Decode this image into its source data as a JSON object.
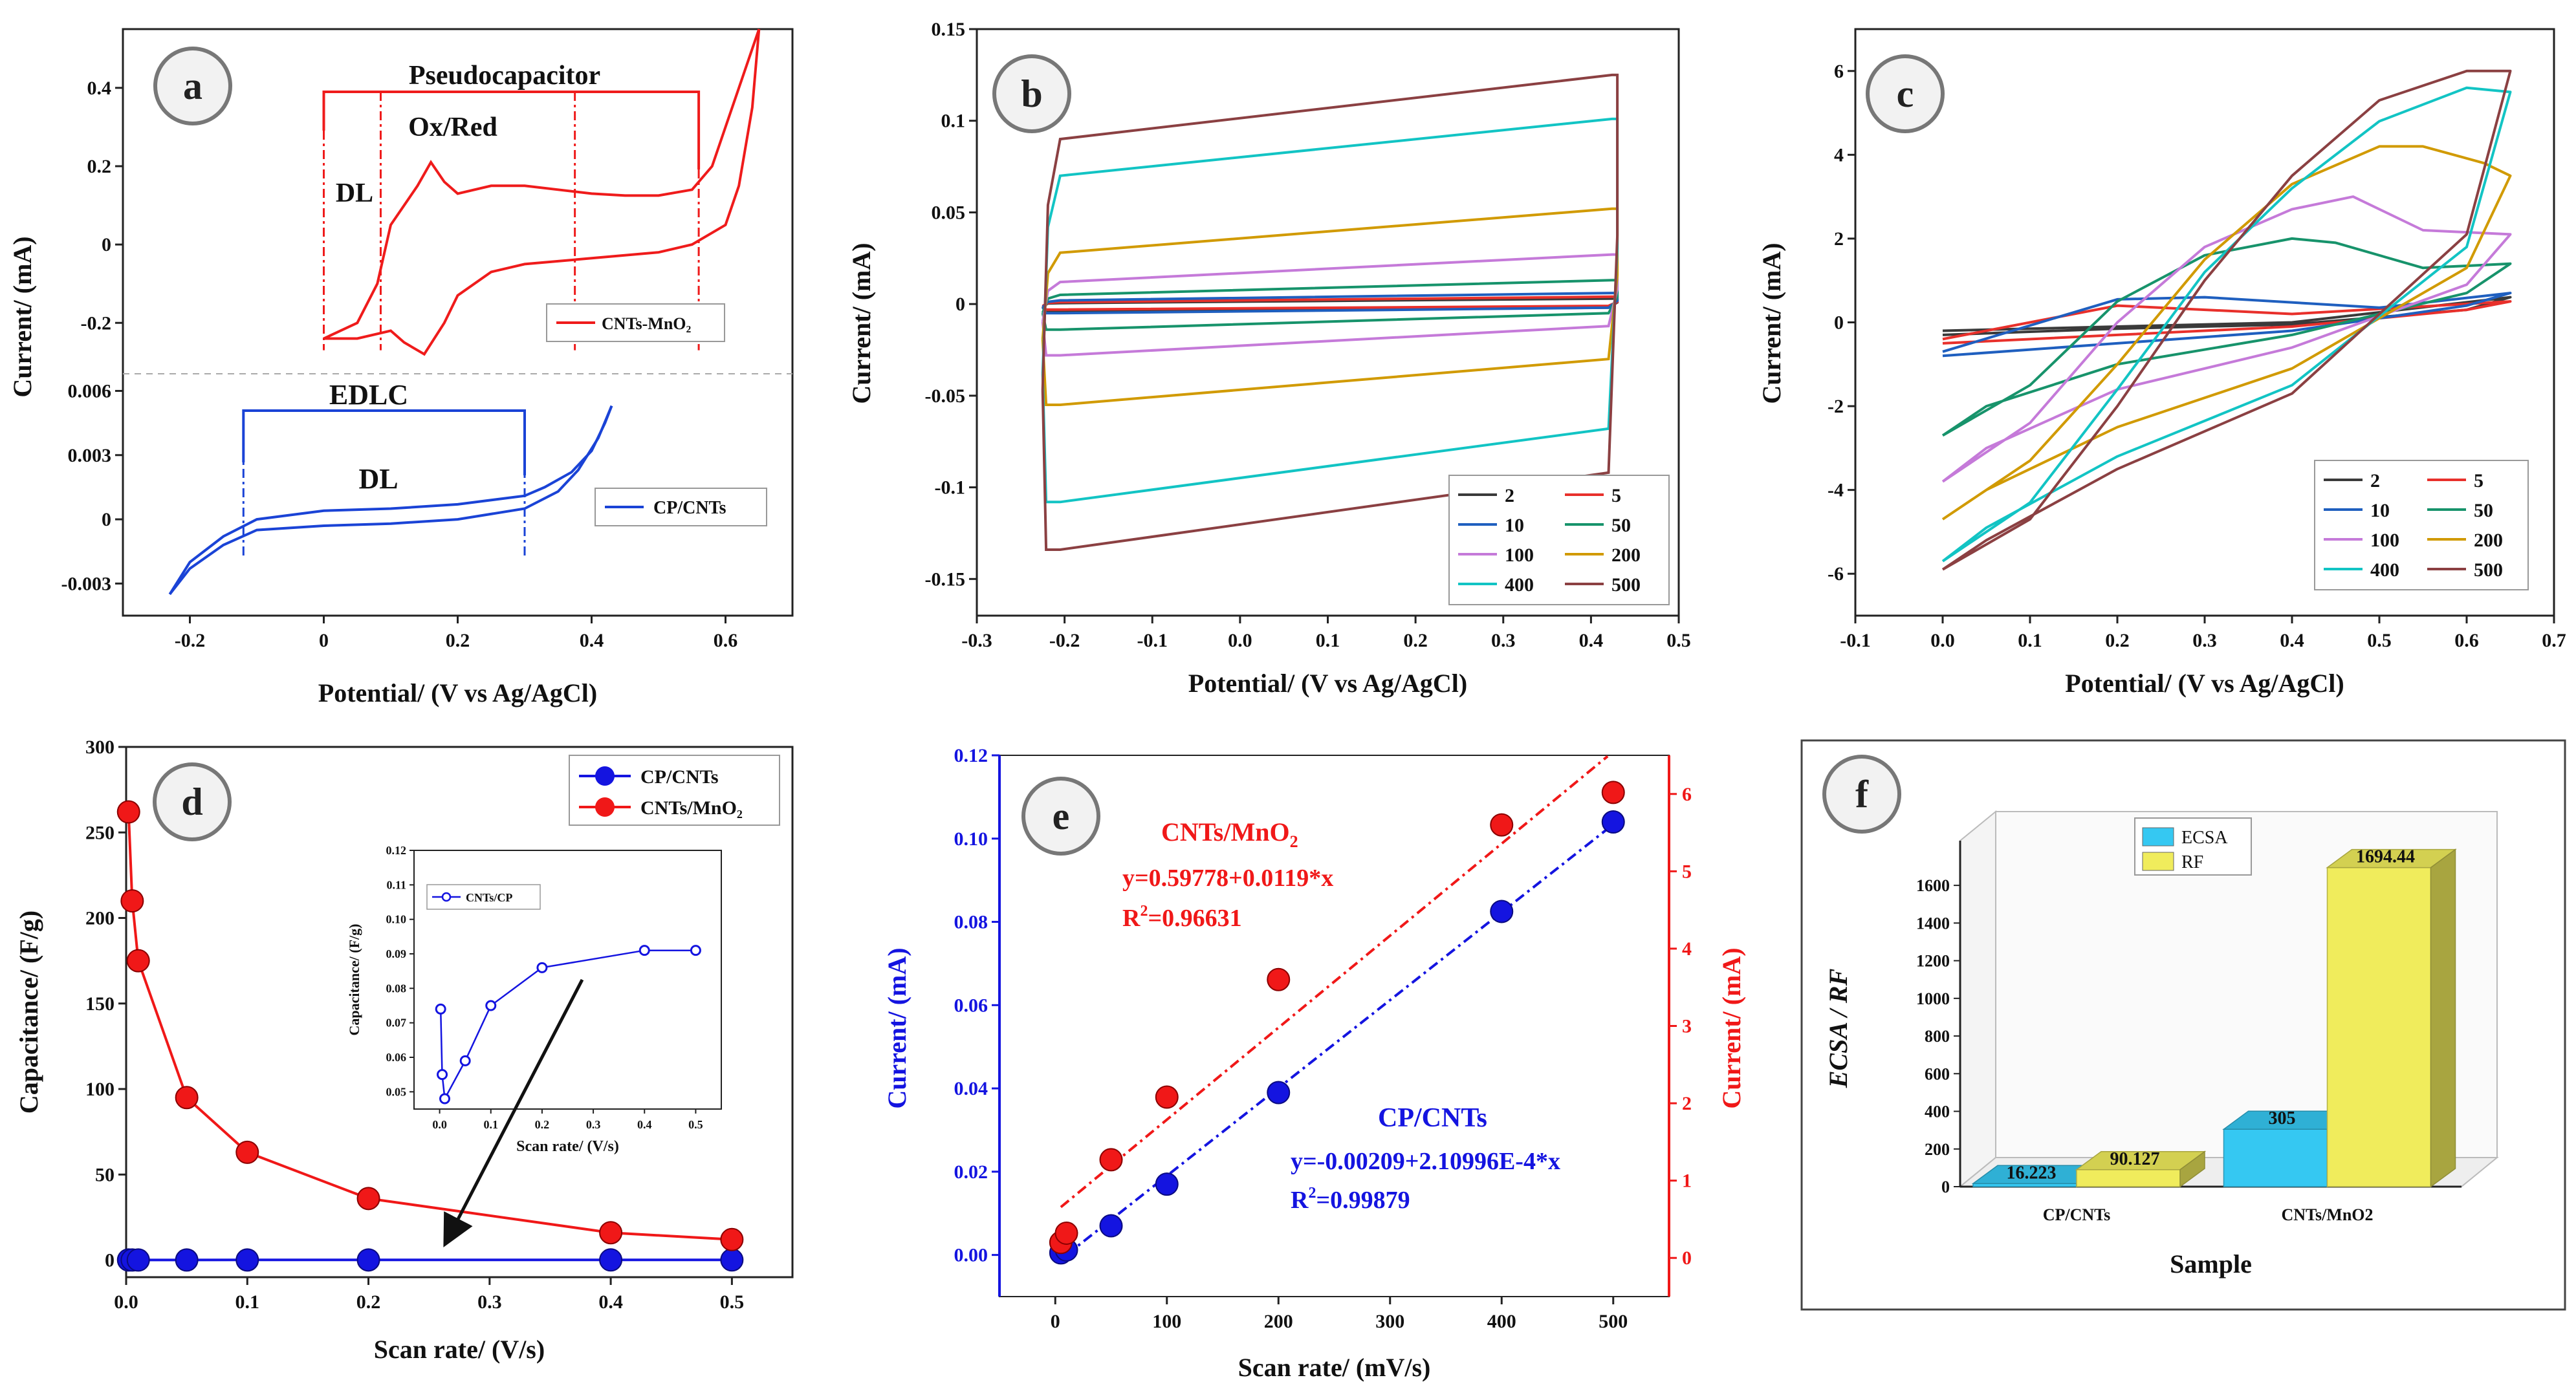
{
  "chart_data": [
    {
      "id": "a",
      "type": "line",
      "badge": "a",
      "xlabel": "Potential/ (V vs Ag/AgCl)",
      "ylabel": "Current/ (mA)",
      "xticks": [
        "-0.2",
        "0",
        "0.2",
        "0.4",
        "0.6"
      ],
      "xlim": [
        -0.3,
        0.7
      ],
      "upper": {
        "ylim": [
          -0.33,
          0.55
        ],
        "yticks": [
          "-0.2",
          "0",
          "0.2",
          "0.4"
        ],
        "series_name": "CNTs-MnO2",
        "legend": "CNTs-MnO₂",
        "annotations": {
          "pseudo": "Pseudocapacitor",
          "oxred": "Ox/Red",
          "dl": "DL"
        },
        "forward": [
          [
            0,
            -0.24
          ],
          [
            0.05,
            -0.2
          ],
          [
            0.08,
            -0.1
          ],
          [
            0.1,
            0.05
          ],
          [
            0.14,
            0.15
          ],
          [
            0.16,
            0.21
          ],
          [
            0.18,
            0.16
          ],
          [
            0.2,
            0.13
          ],
          [
            0.25,
            0.15
          ],
          [
            0.3,
            0.15
          ],
          [
            0.35,
            0.14
          ],
          [
            0.4,
            0.13
          ],
          [
            0.45,
            0.125
          ],
          [
            0.5,
            0.125
          ],
          [
            0.55,
            0.14
          ],
          [
            0.58,
            0.2
          ],
          [
            0.6,
            0.3
          ],
          [
            0.62,
            0.4
          ],
          [
            0.64,
            0.5
          ],
          [
            0.65,
            0.55
          ]
        ],
        "reverse": [
          [
            0.65,
            0.55
          ],
          [
            0.64,
            0.35
          ],
          [
            0.62,
            0.15
          ],
          [
            0.6,
            0.05
          ],
          [
            0.55,
            0.0
          ],
          [
            0.5,
            -0.02
          ],
          [
            0.4,
            -0.035
          ],
          [
            0.3,
            -0.05
          ],
          [
            0.25,
            -0.07
          ],
          [
            0.2,
            -0.13
          ],
          [
            0.18,
            -0.2
          ],
          [
            0.15,
            -0.28
          ],
          [
            0.12,
            -0.25
          ],
          [
            0.1,
            -0.22
          ],
          [
            0.05,
            -0.24
          ],
          [
            0,
            -0.24
          ]
        ]
      },
      "lower": {
        "ylim": [
          -0.0045,
          0.0068
        ],
        "yticks": [
          "-0.003",
          "0",
          "0.003",
          "0.006"
        ],
        "series_name": "CP/CNTs",
        "legend": "CP/CNTs",
        "annotations": {
          "edlc": "EDLC",
          "dl": "DL"
        },
        "forward": [
          [
            -0.23,
            -0.0035
          ],
          [
            -0.2,
            -0.0023
          ],
          [
            -0.15,
            -0.0012
          ],
          [
            -0.1,
            -0.0005
          ],
          [
            0,
            -0.0003
          ],
          [
            0.1,
            -0.0002
          ],
          [
            0.2,
            0.0
          ],
          [
            0.3,
            0.0005
          ],
          [
            0.35,
            0.0013
          ],
          [
            0.38,
            0.0023
          ],
          [
            0.41,
            0.0038
          ],
          [
            0.43,
            0.0053
          ]
        ],
        "reverse": [
          [
            0.43,
            0.0053
          ],
          [
            0.42,
            0.0045
          ],
          [
            0.4,
            0.0032
          ],
          [
            0.37,
            0.0022
          ],
          [
            0.33,
            0.0015
          ],
          [
            0.3,
            0.0011
          ],
          [
            0.2,
            0.0007
          ],
          [
            0.1,
            0.0005
          ],
          [
            0,
            0.0004
          ],
          [
            -0.1,
            0.0
          ],
          [
            -0.15,
            -0.0008
          ],
          [
            -0.2,
            -0.002
          ],
          [
            -0.23,
            -0.0035
          ]
        ]
      }
    },
    {
      "id": "b",
      "type": "line",
      "badge": "b",
      "title": "",
      "xlabel": "Potential/ (V vs Ag/AgCl)",
      "ylabel": "Current/ (mA)",
      "xlim": [
        -0.3,
        0.5
      ],
      "ylim": [
        -0.17,
        0.15
      ],
      "xticks": [
        "-0.3",
        "-0.2",
        "-0.1",
        "0.0",
        "0.1",
        "0.2",
        "0.3",
        "0.4",
        "0.5"
      ],
      "yticks": [
        "-0.15",
        "-0.1",
        "-0.05",
        "0",
        "0.05",
        "0.1",
        "0.15"
      ],
      "series": [
        {
          "name": "2",
          "color": "#3a3a3a",
          "top_a": 0.0005,
          "top_b": 0.003,
          "bot_a": -0.004,
          "bot_b": -0.002
        },
        {
          "name": "5",
          "color": "#e8302b",
          "top_a": 0.001,
          "top_b": 0.004,
          "bot_a": -0.003,
          "bot_b": -0.001
        },
        {
          "name": "10",
          "color": "#1f5fbf",
          "top_a": 0.002,
          "top_b": 0.006,
          "bot_a": -0.005,
          "bot_b": -0.002
        },
        {
          "name": "50",
          "color": "#17936b",
          "top_a": 0.005,
          "top_b": 0.013,
          "bot_a": -0.014,
          "bot_b": -0.005
        },
        {
          "name": "100",
          "color": "#c57ad9",
          "top_a": 0.012,
          "top_b": 0.027,
          "bot_a": -0.028,
          "bot_b": -0.012
        },
        {
          "name": "200",
          "color": "#d19a00",
          "top_a": 0.028,
          "top_b": 0.052,
          "bot_a": -0.055,
          "bot_b": -0.03
        },
        {
          "name": "400",
          "color": "#12c4c4",
          "top_a": 0.07,
          "top_b": 0.101,
          "bot_a": -0.108,
          "bot_b": -0.068
        },
        {
          "name": "500",
          "color": "#8b4042",
          "top_a": 0.09,
          "top_b": 0.125,
          "bot_a": -0.134,
          "bot_b": -0.092
        }
      ]
    },
    {
      "id": "c",
      "type": "line",
      "badge": "c",
      "xlabel": "Potential/ (V vs Ag/AgCl)",
      "ylabel": "Current/ (mA)",
      "xlim": [
        -0.1,
        0.7
      ],
      "ylim": [
        -7,
        7
      ],
      "xticks": [
        "-0.1",
        "0.0",
        "0.1",
        "0.2",
        "0.3",
        "0.4",
        "0.5",
        "0.6",
        "0.7"
      ],
      "yticks": [
        "-6",
        "-4",
        "-2",
        "0",
        "2",
        "4",
        "6"
      ],
      "series": [
        {
          "name": "2",
          "color": "#3a3a3a",
          "pts": [
            [
              0,
              -0.2
            ],
            [
              0.2,
              -0.1
            ],
            [
              0.4,
              0.0
            ],
            [
              0.65,
              0.6
            ],
            [
              0.6,
              0.3
            ],
            [
              0.4,
              -0.05
            ],
            [
              0.2,
              -0.15
            ],
            [
              0,
              -0.3
            ]
          ]
        },
        {
          "name": "5",
          "color": "#e8302b",
          "pts": [
            [
              0,
              -0.4
            ],
            [
              0.2,
              0.4
            ],
            [
              0.4,
              0.2
            ],
            [
              0.65,
              0.5
            ],
            [
              0.6,
              0.3
            ],
            [
              0.4,
              -0.1
            ],
            [
              0.2,
              -0.3
            ],
            [
              0,
              -0.5
            ]
          ]
        },
        {
          "name": "10",
          "color": "#1f5fbf",
          "pts": [
            [
              0,
              -0.7
            ],
            [
              0.2,
              0.55
            ],
            [
              0.3,
              0.6
            ],
            [
              0.5,
              0.35
            ],
            [
              0.65,
              0.7
            ],
            [
              0.6,
              0.4
            ],
            [
              0.4,
              -0.2
            ],
            [
              0.2,
              -0.5
            ],
            [
              0,
              -0.8
            ]
          ]
        },
        {
          "name": "50",
          "color": "#17936b",
          "pts": [
            [
              0,
              -2.7
            ],
            [
              0.1,
              -1.5
            ],
            [
              0.2,
              0.5
            ],
            [
              0.3,
              1.6
            ],
            [
              0.4,
              2.0
            ],
            [
              0.45,
              1.9
            ],
            [
              0.55,
              1.3
            ],
            [
              0.65,
              1.4
            ],
            [
              0.6,
              0.7
            ],
            [
              0.4,
              -0.3
            ],
            [
              0.2,
              -1.0
            ],
            [
              0.05,
              -2.0
            ],
            [
              0,
              -2.7
            ]
          ]
        },
        {
          "name": "100",
          "color": "#c57ad9",
          "pts": [
            [
              0,
              -3.8
            ],
            [
              0.1,
              -2.4
            ],
            [
              0.2,
              0.0
            ],
            [
              0.3,
              1.8
            ],
            [
              0.4,
              2.7
            ],
            [
              0.47,
              3.0
            ],
            [
              0.55,
              2.2
            ],
            [
              0.65,
              2.1
            ],
            [
              0.6,
              0.9
            ],
            [
              0.4,
              -0.6
            ],
            [
              0.2,
              -1.6
            ],
            [
              0.05,
              -3.0
            ],
            [
              0,
              -3.8
            ]
          ]
        },
        {
          "name": "200",
          "color": "#d19a00",
          "pts": [
            [
              0,
              -4.7
            ],
            [
              0.1,
              -3.3
            ],
            [
              0.2,
              -1.0
            ],
            [
              0.3,
              1.5
            ],
            [
              0.4,
              3.3
            ],
            [
              0.5,
              4.2
            ],
            [
              0.55,
              4.2
            ],
            [
              0.62,
              3.8
            ],
            [
              0.65,
              3.5
            ],
            [
              0.6,
              1.3
            ],
            [
              0.4,
              -1.1
            ],
            [
              0.2,
              -2.5
            ],
            [
              0.05,
              -4.0
            ],
            [
              0,
              -4.7
            ]
          ]
        },
        {
          "name": "400",
          "color": "#12c4c4",
          "pts": [
            [
              0,
              -5.7
            ],
            [
              0.1,
              -4.3
            ],
            [
              0.2,
              -1.6
            ],
            [
              0.3,
              1.2
            ],
            [
              0.4,
              3.2
            ],
            [
              0.5,
              4.8
            ],
            [
              0.6,
              5.6
            ],
            [
              0.65,
              5.5
            ],
            [
              0.6,
              1.8
            ],
            [
              0.4,
              -1.5
            ],
            [
              0.2,
              -3.2
            ],
            [
              0.05,
              -4.9
            ],
            [
              0,
              -5.7
            ]
          ]
        },
        {
          "name": "500",
          "color": "#8b4042",
          "pts": [
            [
              0,
              -5.9
            ],
            [
              0.1,
              -4.7
            ],
            [
              0.2,
              -2.0
            ],
            [
              0.3,
              1.0
            ],
            [
              0.4,
              3.5
            ],
            [
              0.5,
              5.3
            ],
            [
              0.6,
              6.0
            ],
            [
              0.65,
              6.0
            ],
            [
              0.6,
              2.1
            ],
            [
              0.4,
              -1.7
            ],
            [
              0.2,
              -3.5
            ],
            [
              0.05,
              -5.2
            ],
            [
              0,
              -5.9
            ]
          ]
        }
      ]
    },
    {
      "id": "d",
      "type": "line",
      "badge": "d",
      "xlabel": "Scan rate/ (V/s)",
      "ylabel": "Capacitance/ (F/g)",
      "xlim": [
        0,
        0.55
      ],
      "ylim": [
        -10,
        300
      ],
      "xticks": [
        "0.0",
        "0.1",
        "0.2",
        "0.3",
        "0.4",
        "0.5"
      ],
      "yticks": [
        "0",
        "50",
        "100",
        "150",
        "200",
        "250",
        "300"
      ],
      "series": [
        {
          "name": "CP/CNTs",
          "color": "#1414e0",
          "x": [
            0.002,
            0.005,
            0.01,
            0.05,
            0.1,
            0.2,
            0.4,
            0.5
          ],
          "values": [
            0.074,
            0.055,
            0.048,
            0.059,
            0.075,
            0.086,
            0.091,
            0.091
          ]
        },
        {
          "name": "CNTs/MnO₂",
          "color": "#f01818",
          "x": [
            0.002,
            0.005,
            0.01,
            0.05,
            0.1,
            0.2,
            0.4,
            0.5
          ],
          "values": [
            262,
            210,
            175,
            95,
            63,
            36,
            16,
            12
          ]
        }
      ],
      "inset": {
        "legend": "CNTs/CP",
        "xlabel": "Scan rate/ (V/s)",
        "ylabel": "Capacitance/ (F/g)",
        "xlim": [
          -0.05,
          0.55
        ],
        "ylim": [
          0.045,
          0.12
        ],
        "xticks": [
          "0.0",
          "0.1",
          "0.2",
          "0.3",
          "0.4",
          "0.5"
        ],
        "yticks": [
          "0.05",
          "0.06",
          "0.07",
          "0.08",
          "0.09",
          "0.10",
          "0.11",
          "0.12"
        ]
      }
    },
    {
      "id": "e",
      "type": "scatter",
      "badge": "e",
      "xlabel": "Scan rate/ (mV/s)",
      "ylabel_left": "Current/ (mA)",
      "ylabel_right": "Current/ (mA)",
      "xlim": [
        -50,
        550
      ],
      "ylim_left": [
        -0.01,
        0.12
      ],
      "ylim_right": [
        -0.5,
        6.5
      ],
      "xticks": [
        "0",
        "100",
        "200",
        "300",
        "400",
        "500"
      ],
      "yticks_left": [
        "0.00",
        "0.02",
        "0.04",
        "0.06",
        "0.08",
        "0.10",
        "0.12"
      ],
      "yticks_right": [
        "0",
        "1",
        "2",
        "3",
        "4",
        "5",
        "6"
      ],
      "series": [
        {
          "name": "CP/CNTs",
          "axis": "left",
          "color": "#1414e0",
          "x": [
            5,
            10,
            50,
            100,
            200,
            400,
            500
          ],
          "values": [
            0.0005,
            0.0012,
            0.007,
            0.017,
            0.039,
            0.0825,
            0.104
          ],
          "fit": {
            "intercept": -0.00209,
            "slope": 0.000210996
          }
        },
        {
          "name": "CNTs/MnO₂",
          "axis": "right",
          "color": "#f01818",
          "x": [
            5,
            10,
            50,
            100,
            200,
            400,
            500
          ],
          "values": [
            0.2,
            0.32,
            1.27,
            2.08,
            3.6,
            5.6,
            6.02
          ],
          "fit": {
            "intercept": 0.59778,
            "slope": 0.0119
          }
        }
      ],
      "annotations": {
        "red_title": "CNTs/MnO",
        "red_title_sub": "2",
        "red_eq": "y=0.59778+0.0119*x",
        "red_r2_pre": "R",
        "red_r2_sup": "2",
        "red_r2_val": "=0.96631",
        "blue_title": "CP/CNTs",
        "blue_eq": "y=-0.00209+2.10996E-4*x",
        "blue_r2_pre": "R",
        "blue_r2_sup": "2",
        "blue_r2_val": "=0.99879"
      }
    },
    {
      "id": "f",
      "type": "bar",
      "badge": "f",
      "xlabel": "Sample",
      "ylabel": "ECSA / RF",
      "ylim": [
        0,
        1700
      ],
      "yticks": [
        "0",
        "200",
        "400",
        "600",
        "800",
        "1000",
        "1200",
        "1400",
        "1600"
      ],
      "categories": [
        "CP/CNTs",
        "CNTs/MnO2"
      ],
      "series": [
        {
          "name": "ECSA",
          "color": "#35c8f2",
          "values": [
            16.223,
            305
          ],
          "labels": [
            "16.223",
            "305"
          ]
        },
        {
          "name": "RF",
          "color": "#f0ec5c",
          "values": [
            90.127,
            1694.44
          ],
          "labels": [
            "90.127",
            "1694.44"
          ]
        }
      ]
    }
  ]
}
